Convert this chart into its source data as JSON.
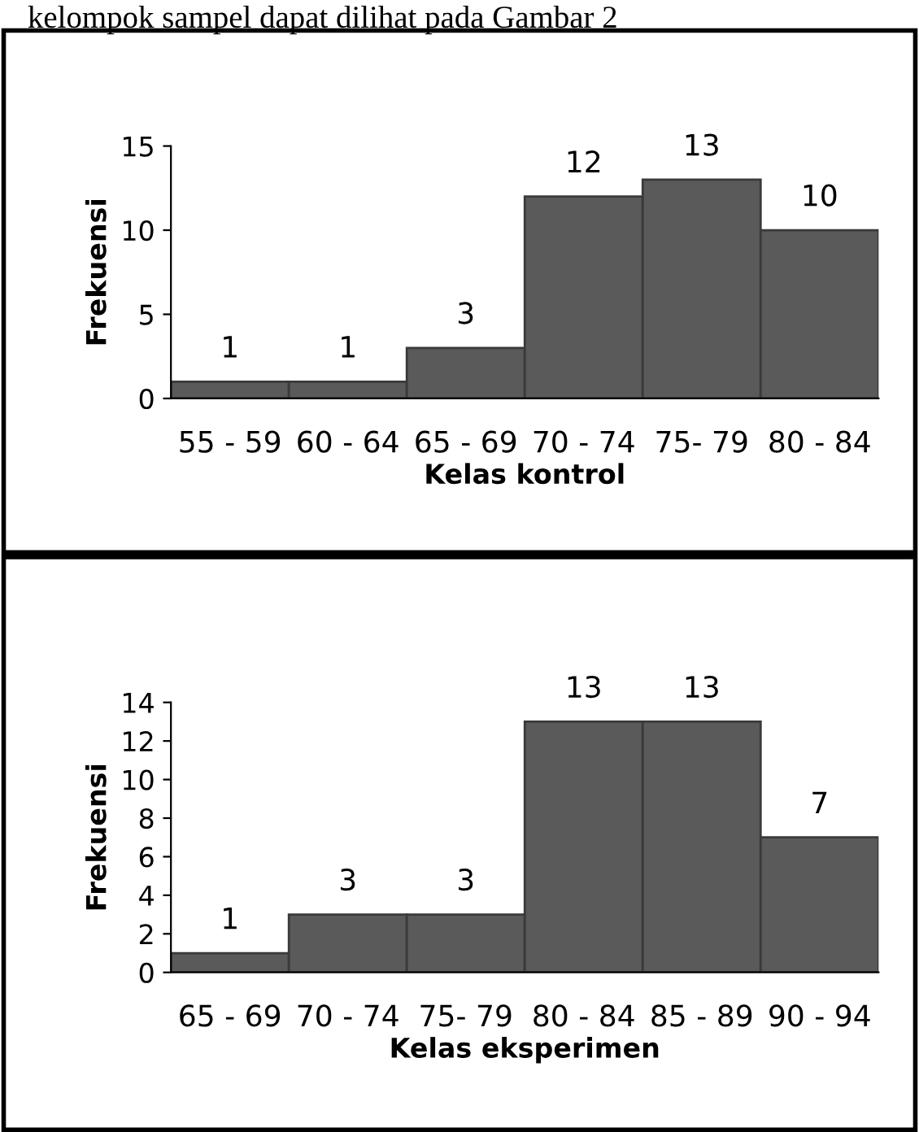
{
  "chart_data": [
    {
      "type": "bar",
      "xlabel": "Kelas kontrol",
      "ylabel": "Frekuensi",
      "annotations": [
        "kelompok sampel dapat dilihat pada Gambar 2"
      ],
      "categories": [
        "55 - 59",
        "60 - 64",
        "65 - 69",
        "70 - 74",
        "75- 79",
        "80 - 84"
      ],
      "values": [
        1,
        1,
        3,
        12,
        13,
        10
      ],
      "color": "#5a5a5a",
      "ylim": [
        0,
        15
      ],
      "yticks": [
        0,
        5,
        10,
        15
      ],
      "data_labels": true,
      "grid": false,
      "legend": false
    },
    {
      "type": "bar",
      "xlabel": "Kelas eksperimen",
      "ylabel": "Frekuensi",
      "categories": [
        "65 - 69",
        "70 - 74",
        "75- 79",
        "80 - 84",
        "85 - 89",
        "90 - 94"
      ],
      "values": [
        1,
        3,
        3,
        13,
        13,
        7
      ],
      "color": "#5a5a5a",
      "ylim": [
        0,
        14
      ],
      "yticks": [
        0,
        2,
        4,
        6,
        8,
        10,
        12,
        14
      ],
      "data_labels": true,
      "grid": false,
      "legend": false
    }
  ]
}
